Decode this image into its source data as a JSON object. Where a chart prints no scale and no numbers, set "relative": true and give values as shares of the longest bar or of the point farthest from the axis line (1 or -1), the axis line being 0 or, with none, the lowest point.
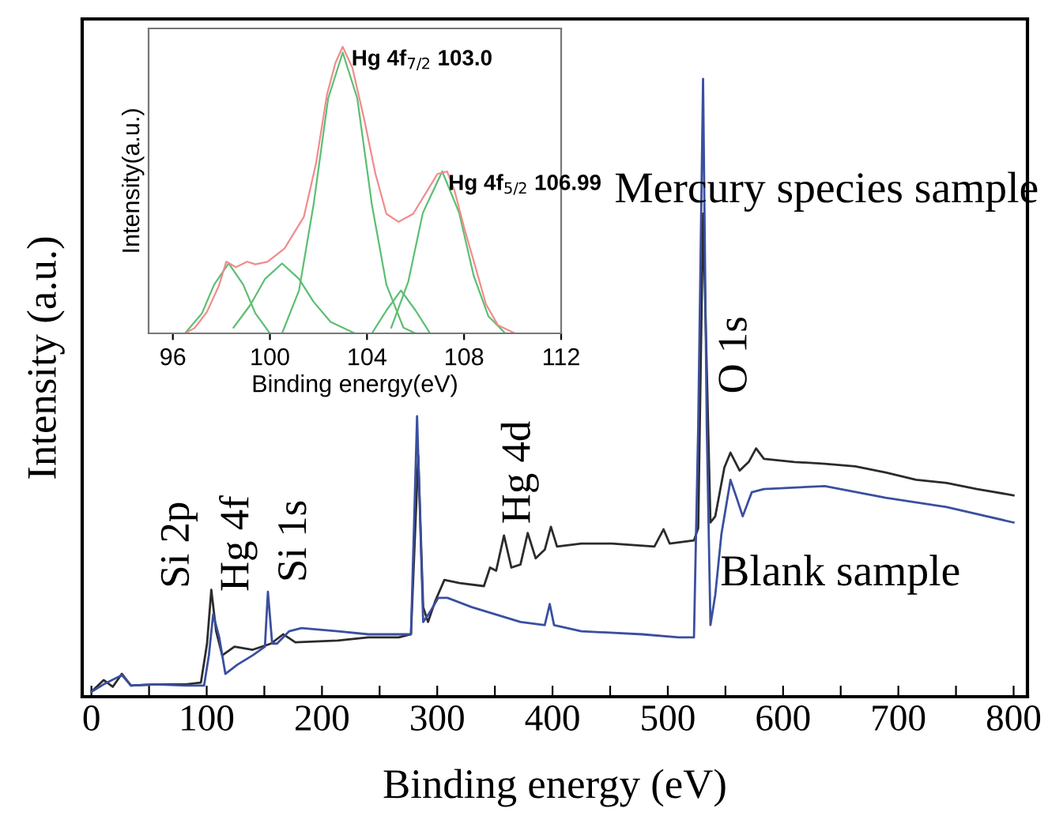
{
  "chart_data": [
    {
      "type": "line",
      "relative": true,
      "xlabel": "Binding energy (eV)",
      "ylabel": "Intensity (a.u.)",
      "xlim": [
        -8,
        812
      ],
      "xticks": [
        0,
        {
          "value": 50,
          "label": null
        },
        100,
        {
          "value": 150,
          "label": null
        },
        200,
        {
          "value": 250,
          "label": null
        },
        300,
        {
          "value": 350,
          "label": null
        },
        400,
        {
          "value": 450,
          "label": null
        },
        500,
        {
          "value": 550,
          "label": null
        },
        600,
        {
          "value": 650,
          "label": null
        },
        700,
        {
          "value": 750,
          "label": null
        },
        800
      ],
      "tick_labels": "x",
      "grid": false,
      "legend": false,
      "series": [
        {
          "name": "Mercury species sample",
          "color": "#2b2b2b",
          "x": [
            0,
            10.6,
            18.5,
            26.4,
            34.3,
            55.4,
            81.8,
            95.0,
            100.3,
            104.0,
            108.2,
            113.5,
            124.1,
            139.9,
            155.8,
            166.3,
            170.5,
            176.9,
            213.8,
            240.2,
            266.6,
            277.2,
            283.5,
            287.8,
            292.0,
            298.3,
            306.2,
            319.4,
            340.5,
            345.8,
            351.1,
            357.9,
            364.3,
            372.2,
            378.5,
            385.4,
            393.3,
            398.6,
            403.9,
            425.0,
            451.4,
            488.4,
            496.3,
            501.6,
            522.7,
            526.4,
            530.6,
            537.0,
            541.2,
            549.1,
            554.4,
            562.3,
            570.2,
            576.6,
            583.4,
            609.8,
            636.2,
            662.6,
            689.0,
            715.4,
            741.8,
            768.2,
            799.9
          ],
          "values": [
            0.008,
            0.027,
            0.016,
            0.037,
            0.018,
            0.02,
            0.02,
            0.023,
            0.086,
            0.173,
            0.106,
            0.067,
            0.081,
            0.076,
            0.086,
            0.101,
            0.096,
            0.088,
            0.091,
            0.096,
            0.096,
            0.101,
            0.39,
            0.145,
            0.121,
            0.155,
            0.189,
            0.184,
            0.179,
            0.209,
            0.204,
            0.261,
            0.209,
            0.214,
            0.265,
            0.224,
            0.238,
            0.275,
            0.243,
            0.248,
            0.248,
            0.243,
            0.271,
            0.248,
            0.253,
            0.273,
            0.782,
            0.282,
            0.292,
            0.371,
            0.395,
            0.366,
            0.38,
            0.402,
            0.385,
            0.38,
            0.377,
            0.373,
            0.363,
            0.351,
            0.346,
            0.336,
            0.326
          ]
        },
        {
          "name": "Blank sample",
          "color": "#3a4fa0",
          "x": [
            0,
            10.6,
            26.4,
            34.3,
            55.4,
            81.8,
            97.7,
            101.9,
            105.6,
            110.9,
            116.2,
            126.7,
            139.9,
            150.5,
            153.1,
            156.8,
            161.0,
            171.6,
            182.2,
            213.8,
            240.2,
            277.2,
            282.5,
            287.8,
            293.0,
            300.9,
            308.9,
            330.0,
            372.2,
            393.3,
            397.6,
            401.3,
            425.0,
            477.8,
            509.5,
            522.7,
            526.4,
            530.6,
            533.8,
            537.0,
            541.2,
            546.5,
            554.4,
            559.7,
            565.0,
            572.9,
            583.4,
            636.2,
            689.0,
            741.8,
            799.9
          ],
          "values": [
            0.008,
            0.02,
            0.035,
            0.018,
            0.02,
            0.018,
            0.018,
            0.067,
            0.133,
            0.096,
            0.037,
            0.052,
            0.067,
            0.081,
            0.17,
            0.086,
            0.086,
            0.106,
            0.111,
            0.106,
            0.101,
            0.101,
            0.454,
            0.121,
            0.135,
            0.16,
            0.16,
            0.145,
            0.121,
            0.116,
            0.15,
            0.116,
            0.106,
            0.101,
            0.096,
            0.096,
            0.439,
            1.0,
            0.439,
            0.116,
            0.165,
            0.263,
            0.351,
            0.322,
            0.292,
            0.331,
            0.336,
            0.341,
            0.322,
            0.307,
            0.282
          ]
        }
      ],
      "annotations": [
        "Si 2p",
        "Hg 4f",
        "Si 1s",
        "Hg 4d",
        "O 1s"
      ]
    },
    {
      "type": "line",
      "relative": true,
      "xlabel": "Binding energy(eV)",
      "ylabel": "Intensity(a.u.)",
      "xlim": [
        95,
        112
      ],
      "xticks": [
        96,
        100,
        104,
        108,
        112
      ],
      "tick_labels": "x",
      "grid": false,
      "legend": false,
      "series": [
        {
          "color": "#5cbf73",
          "x": [
            96.5,
            97.2,
            97.7,
            98.3,
            98.9,
            99.4,
            100.0
          ],
          "values": [
            0,
            0.07,
            0.17,
            0.244,
            0.17,
            0.07,
            0
          ]
        },
        {
          "color": "#5cbf73",
          "x": [
            98.5,
            99.2,
            99.8,
            100.5,
            101.2,
            101.8,
            102.5,
            103.5
          ],
          "values": [
            0.02,
            0.1,
            0.19,
            0.244,
            0.19,
            0.11,
            0.04,
            0
          ]
        },
        {
          "color": "#5cbf73",
          "x": [
            100.5,
            101.2,
            101.8,
            102.4,
            103.0,
            103.6,
            104.2,
            104.8,
            105.5,
            106.0
          ],
          "values": [
            0,
            0.15,
            0.45,
            0.82,
            0.98,
            0.82,
            0.45,
            0.17,
            0.02,
            0
          ]
        },
        {
          "color": "#5cbf73",
          "x": [
            104.2,
            104.8,
            105.4,
            106.0,
            106.6
          ],
          "values": [
            0,
            0.08,
            0.15,
            0.08,
            0
          ]
        },
        {
          "color": "#5cbf73",
          "x": [
            105.0,
            105.7,
            106.3,
            107.1,
            107.8,
            108.4,
            109.0,
            109.7
          ],
          "values": [
            0.02,
            0.18,
            0.42,
            0.565,
            0.42,
            0.2,
            0.06,
            0
          ]
        },
        {
          "color": "#f08c8c",
          "x": [
            95.5,
            96.5,
            96.9,
            97.4,
            97.9,
            98.2,
            98.6,
            99.06,
            99.4,
            99.9,
            100.6,
            101.4,
            101.9,
            102.35,
            102.7,
            103.0,
            103.4,
            103.9,
            104.35,
            104.8,
            105.3,
            105.9,
            106.5,
            106.9,
            107.3,
            107.6,
            108.0,
            108.5,
            108.9,
            109.4,
            110.1,
            112.0
          ],
          "values": [
            0,
            0,
            0.019,
            0.074,
            0.167,
            0.25,
            0.231,
            0.25,
            0.241,
            0.25,
            0.296,
            0.407,
            0.593,
            0.833,
            0.944,
            1.0,
            0.926,
            0.741,
            0.556,
            0.417,
            0.389,
            0.417,
            0.5,
            0.556,
            0.565,
            0.5,
            0.37,
            0.222,
            0.102,
            0.028,
            0,
            0
          ]
        }
      ],
      "annotations": [
        {
          "text": "Hg 4f$_{7/2}$ 103.0",
          "x": 103.0,
          "y": 1.0
        },
        {
          "text": "Hg 4f$_{5/2}$ 106.99",
          "x": 106.99,
          "y": 0.565
        }
      ]
    }
  ]
}
